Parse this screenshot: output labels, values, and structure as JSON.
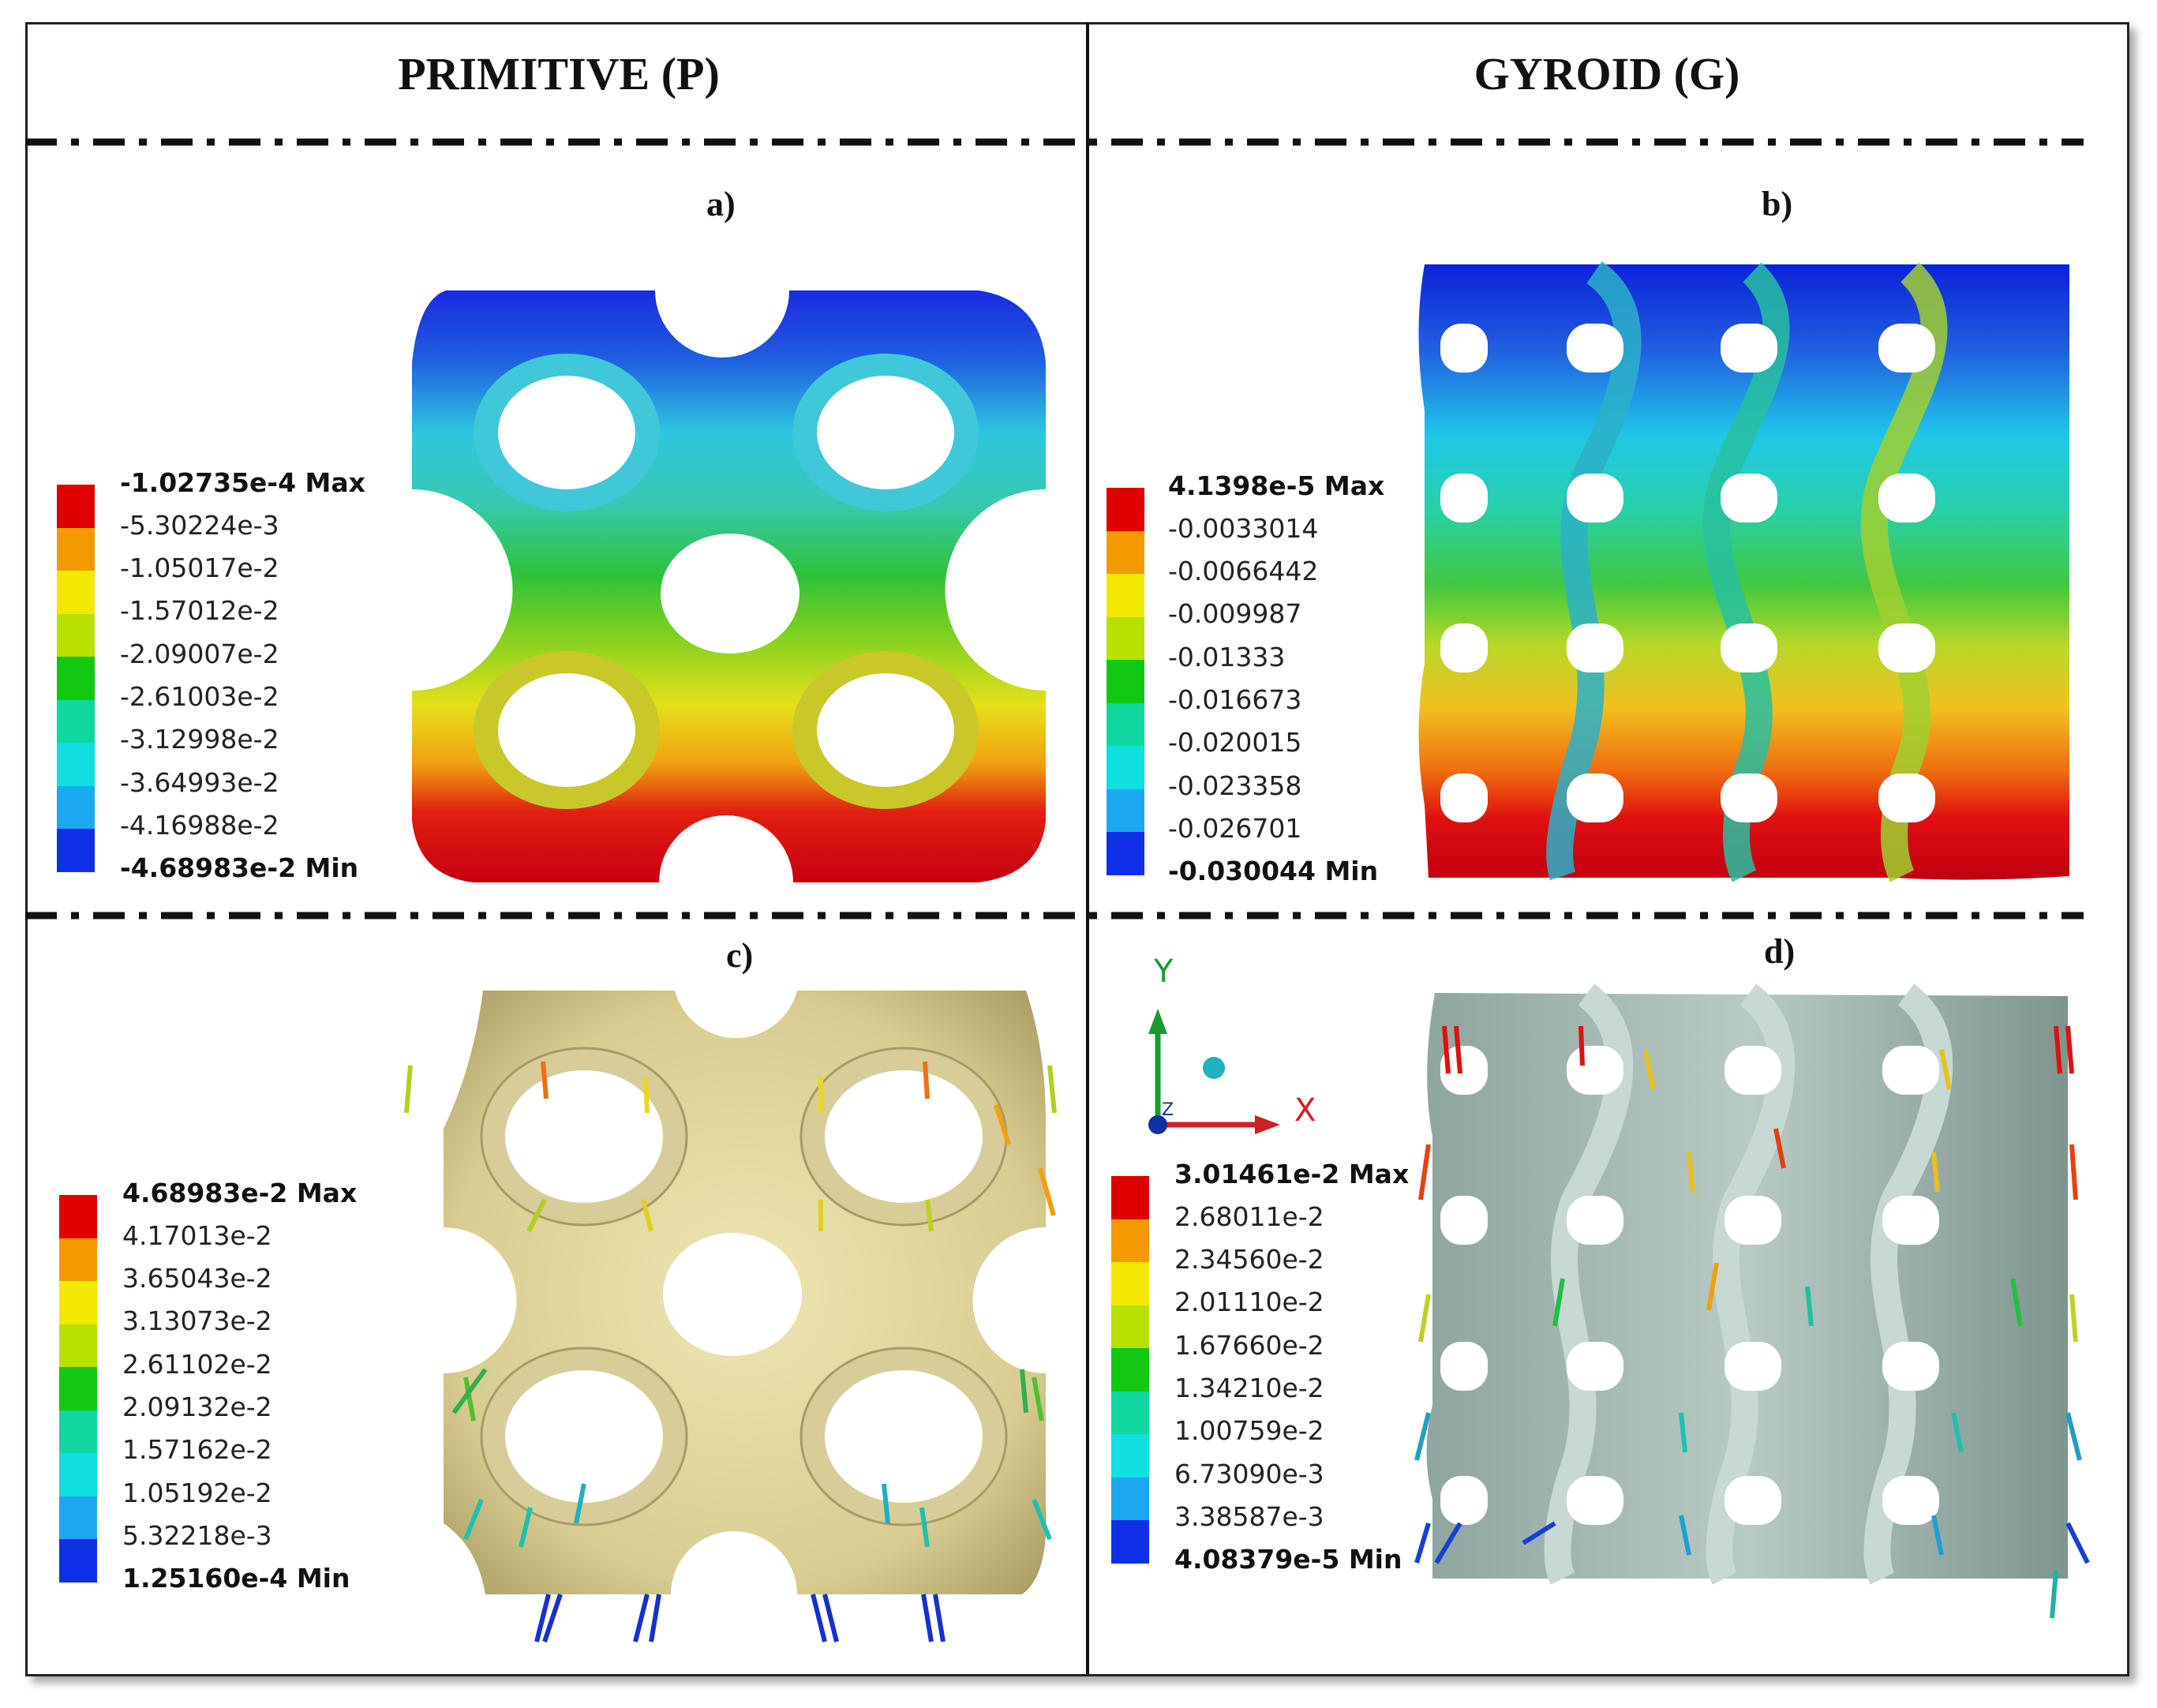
{
  "headers": {
    "left": "PRIMITIVE (P)",
    "right": "GYROID (G)"
  },
  "panels": {
    "a": {
      "label": "a)",
      "legend": [
        "-1.02735e-4 Max",
        "-5.30224e-3",
        "-1.05017e-2",
        "-1.57012e-2",
        "-2.09007e-2",
        "-2.61003e-2",
        "-3.12998e-2",
        "-3.64993e-2",
        "-4.16988e-2",
        "-4.68983e-2 Min"
      ]
    },
    "b": {
      "label": "b)",
      "legend": [
        "4.1398e-5 Max",
        "-0.0033014",
        "-0.0066442",
        "-0.009987",
        "-0.01333",
        "-0.016673",
        "-0.020015",
        "-0.023358",
        "-0.026701",
        "-0.030044 Min"
      ]
    },
    "c": {
      "label": "c)",
      "legend": [
        "4.68983e-2 Max",
        "4.17013e-2",
        "3.65043e-2",
        "3.13073e-2",
        "2.61102e-2",
        "2.09132e-2",
        "1.57162e-2",
        "1.05192e-2",
        "5.32218e-3",
        "1.25160e-4 Min"
      ]
    },
    "d": {
      "label": "d)",
      "legend": [
        "3.01461e-2 Max",
        "2.68011e-2",
        "2.34560e-2",
        "2.01110e-2",
        "1.67660e-2",
        "1.34210e-2",
        "1.00759e-2",
        "6.73090e-3",
        "3.38587e-3",
        "4.08379e-5 Min"
      ]
    }
  },
  "axes": {
    "x": "X",
    "y": "Y",
    "z": "Z"
  },
  "colors": {
    "scale": [
      "#e00000",
      "#f39a00",
      "#f2e800",
      "#b8e000",
      "#12c812",
      "#10d8a0",
      "#10e0e0",
      "#1ca8f0",
      "#1030e8"
    ],
    "primitive_undeformed": "#e4d9a0",
    "gyroid_undeformed": "#a8bcb6"
  }
}
